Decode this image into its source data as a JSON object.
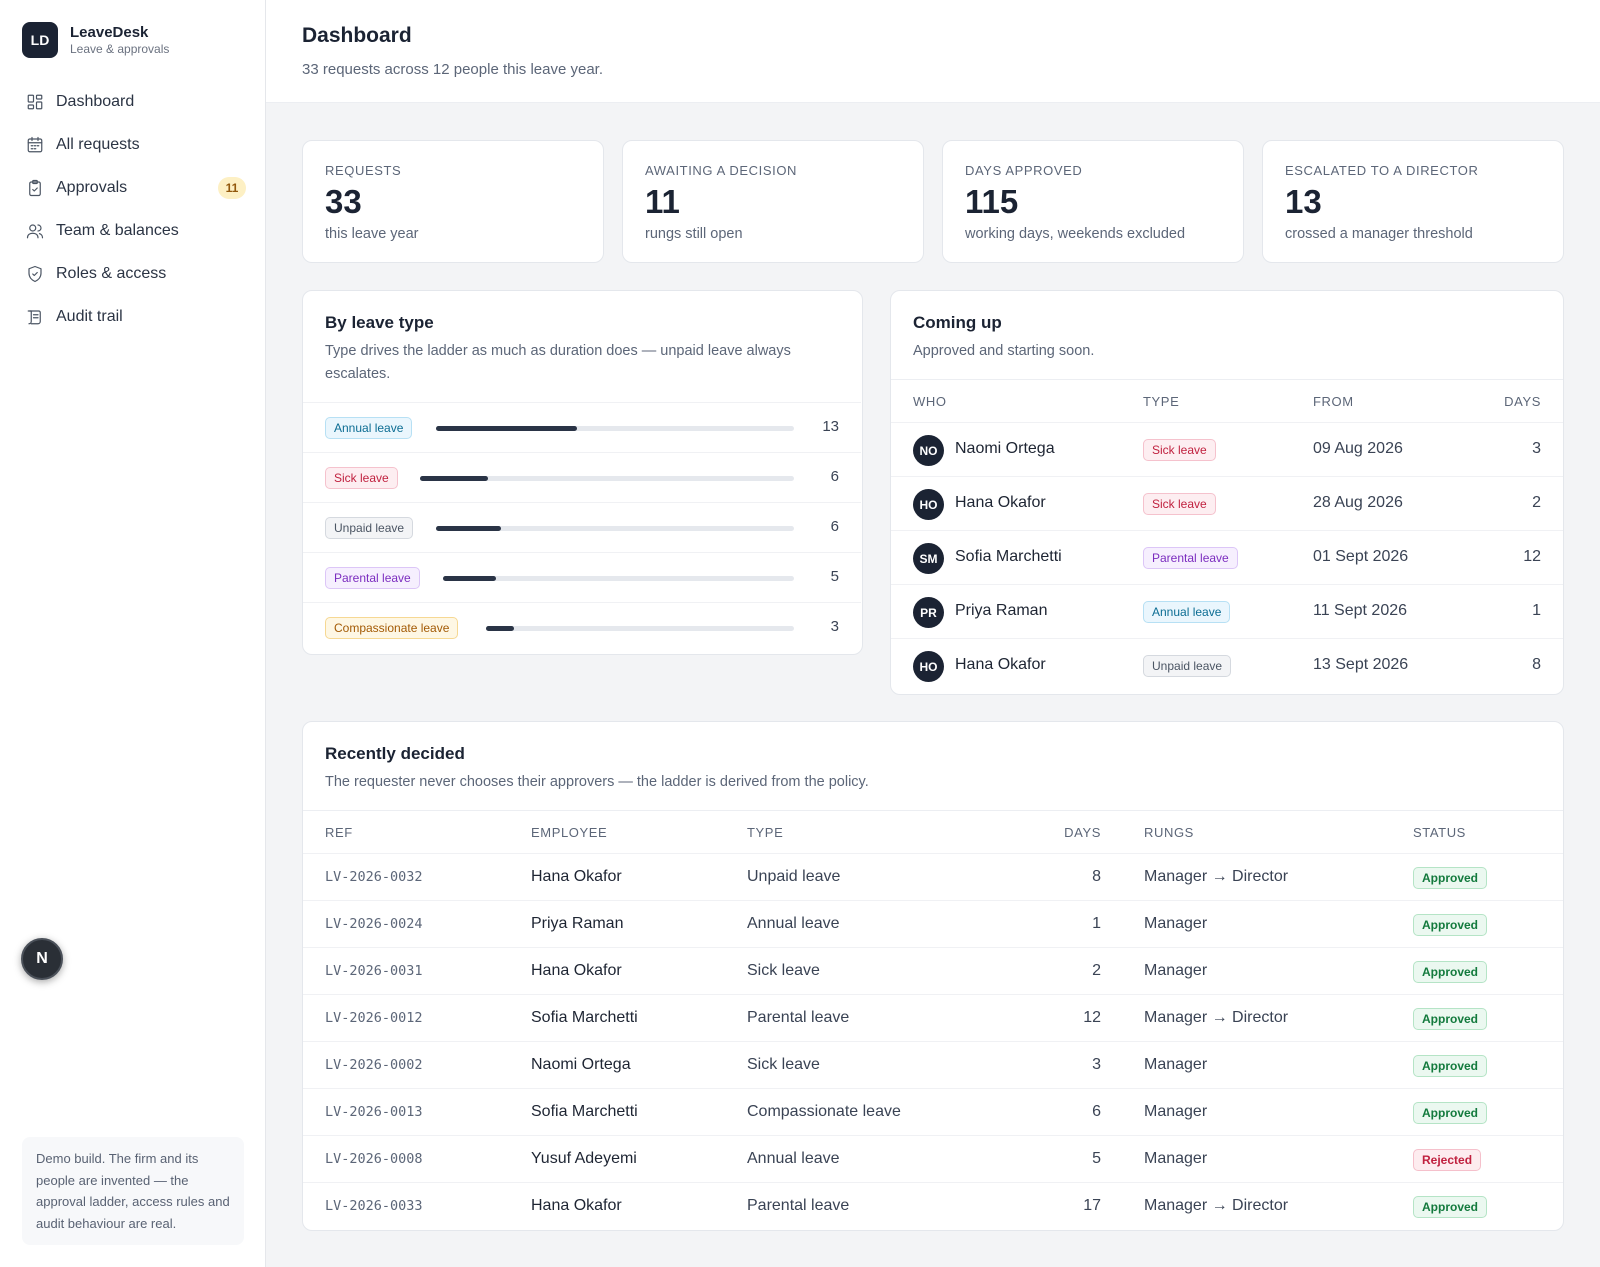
{
  "brand": {
    "logo": "LD",
    "name": "LeaveDesk",
    "subtitle": "Leave & approvals"
  },
  "nav": [
    {
      "label": "Dashboard",
      "icon": "dashboard-icon"
    },
    {
      "label": "All requests",
      "icon": "calendar-icon"
    },
    {
      "label": "Approvals",
      "icon": "clipboard-check-icon",
      "badge": "11"
    },
    {
      "label": "Team & balances",
      "icon": "users-icon"
    },
    {
      "label": "Roles & access",
      "icon": "shield-check-icon"
    },
    {
      "label": "Audit trail",
      "icon": "scroll-icon"
    }
  ],
  "fab": {
    "label": "N"
  },
  "demo_note": "Demo build. The firm and its people are invented — the approval ladder, access rules and audit behaviour are real.",
  "header": {
    "title": "Dashboard",
    "subtitle": "33 requests across 12 people this leave year."
  },
  "stats": [
    {
      "label": "Requests",
      "value": "33",
      "caption": "this leave year"
    },
    {
      "label": "Awaiting a decision",
      "value": "11",
      "caption": "rungs still open"
    },
    {
      "label": "Days approved",
      "value": "115",
      "caption": "working days, weekends excluded"
    },
    {
      "label": "Escalated to a director",
      "value": "13",
      "caption": "crossed a manager threshold"
    }
  ],
  "by_leave_type": {
    "title": "By leave type",
    "subtitle": "Type drives the ladder as much as duration does — unpaid leave always escalates.",
    "max": 33,
    "items": [
      {
        "label": "Annual leave",
        "count": "13",
        "value": 13,
        "kind": "annual"
      },
      {
        "label": "Sick leave",
        "count": "6",
        "value": 6,
        "kind": "sick"
      },
      {
        "label": "Unpaid leave",
        "count": "6",
        "value": 6,
        "kind": "unpaid"
      },
      {
        "label": "Parental leave",
        "count": "5",
        "value": 5,
        "kind": "parental"
      },
      {
        "label": "Compassionate leave",
        "count": "3",
        "value": 3,
        "kind": "compassionate"
      }
    ]
  },
  "coming_up": {
    "title": "Coming up",
    "subtitle": "Approved and starting soon.",
    "columns": {
      "who": "Who",
      "type": "Type",
      "from": "From",
      "days": "Days"
    },
    "rows": [
      {
        "initials": "NO",
        "name": "Naomi Ortega",
        "type": "Sick leave",
        "kind": "sick",
        "from": "09 Aug 2026",
        "days": "3"
      },
      {
        "initials": "HO",
        "name": "Hana Okafor",
        "type": "Sick leave",
        "kind": "sick",
        "from": "28 Aug 2026",
        "days": "2"
      },
      {
        "initials": "SM",
        "name": "Sofia Marchetti",
        "type": "Parental leave",
        "kind": "parental",
        "from": "01 Sept 2026",
        "days": "12"
      },
      {
        "initials": "PR",
        "name": "Priya Raman",
        "type": "Annual leave",
        "kind": "annual",
        "from": "11 Sept 2026",
        "days": "1"
      },
      {
        "initials": "HO",
        "name": "Hana Okafor",
        "type": "Unpaid leave",
        "kind": "unpaid",
        "from": "13 Sept 2026",
        "days": "8"
      }
    ]
  },
  "recently_decided": {
    "title": "Recently decided",
    "subtitle": "The requester never chooses their approvers — the ladder is derived from the policy.",
    "columns": {
      "ref": "Ref",
      "employee": "Employee",
      "type": "Type",
      "days": "Days",
      "rungs": "Rungs",
      "status": "Status"
    },
    "rows": [
      {
        "ref": "LV-2026-0032",
        "employee": "Hana Okafor",
        "type": "Unpaid leave",
        "days": "8",
        "rungs": "Manager → Director",
        "status": "Approved"
      },
      {
        "ref": "LV-2026-0024",
        "employee": "Priya Raman",
        "type": "Annual leave",
        "days": "1",
        "rungs": "Manager",
        "status": "Approved"
      },
      {
        "ref": "LV-2026-0031",
        "employee": "Hana Okafor",
        "type": "Sick leave",
        "days": "2",
        "rungs": "Manager",
        "status": "Approved"
      },
      {
        "ref": "LV-2026-0012",
        "employee": "Sofia Marchetti",
        "type": "Parental leave",
        "days": "12",
        "rungs": "Manager → Director",
        "status": "Approved"
      },
      {
        "ref": "LV-2026-0002",
        "employee": "Naomi Ortega",
        "type": "Sick leave",
        "days": "3",
        "rungs": "Manager",
        "status": "Approved"
      },
      {
        "ref": "LV-2026-0013",
        "employee": "Sofia Marchetti",
        "type": "Compassionate leave",
        "days": "6",
        "rungs": "Manager",
        "status": "Approved"
      },
      {
        "ref": "LV-2026-0008",
        "employee": "Yusuf Adeyemi",
        "type": "Annual leave",
        "days": "5",
        "rungs": "Manager",
        "status": "Rejected"
      },
      {
        "ref": "LV-2026-0033",
        "employee": "Hana Okafor",
        "type": "Parental leave",
        "days": "17",
        "rungs": "Manager → Director",
        "status": "Approved"
      }
    ]
  },
  "colors": {
    "brand_dark": "#1b2333",
    "approved": "#137a3d",
    "rejected": "#c0213f",
    "badge_bg": "#fdf0c4"
  }
}
